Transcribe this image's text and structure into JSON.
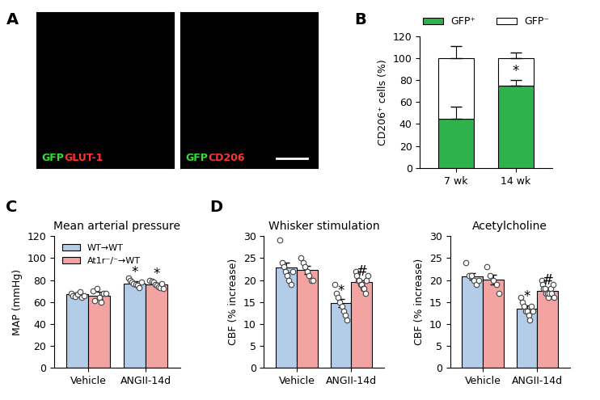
{
  "images": {
    "panel": "A",
    "frames": [
      {
        "labels": [
          {
            "text": "GFP",
            "color": "#33dd33"
          },
          {
            "text": "GLUT-1",
            "color": "#ff3333"
          }
        ]
      },
      {
        "labels": [
          {
            "text": "GFP",
            "color": "#33dd33"
          },
          {
            "text": "CD206",
            "color": "#ff3333"
          }
        ]
      }
    ]
  },
  "chart_data": [
    {
      "panel": "B",
      "type": "bar",
      "stacked": true,
      "legend": "above",
      "categories": [
        "7 wk",
        "14 wk"
      ],
      "y_label": "CD206⁺ cells (%)",
      "ylim": [
        0,
        120
      ],
      "yticks": [
        0,
        20,
        40,
        60,
        80,
        100,
        120
      ],
      "series": [
        {
          "name": "GFP⁺",
          "color": "#2eb24b",
          "values": [
            45,
            75
          ],
          "error": [
            11,
            5
          ]
        },
        {
          "name": "GFP⁻",
          "color": "#ffffff",
          "values": [
            55,
            25
          ],
          "error": [
            11,
            5
          ]
        }
      ],
      "annotations": [
        {
          "category": "14 wk",
          "series": "GFP⁺",
          "text": "*"
        }
      ]
    },
    {
      "panel": "C",
      "type": "bar",
      "title": "Mean arterial pressure",
      "legend": "upper left",
      "categories": [
        "Vehicle",
        "ANGII-14d"
      ],
      "y_label": "MAP (mmHg)",
      "ylim": [
        0,
        120
      ],
      "yticks": [
        0,
        20,
        40,
        60,
        80,
        100,
        120
      ],
      "series": [
        {
          "name": "WT→WT",
          "color": "#b3cde8",
          "values": [
            67,
            77
          ],
          "error": [
            1.5,
            2
          ],
          "points": [
            [
              68,
              66,
              65,
              67,
              69,
              64,
              66
            ],
            [
              82,
              80,
              78,
              77,
              76,
              75,
              73,
              78
            ]
          ]
        },
        {
          "name": "At1r⁻/⁻→WT",
          "color": "#f4a3a3",
          "values": [
            66,
            76
          ],
          "error": [
            3,
            1.5
          ],
          "points": [
            [
              70,
              61,
              72,
              64,
              60,
              68,
              68
            ],
            [
              80,
              79,
              78,
              76,
              75,
              74,
              73,
              77,
              72
            ]
          ]
        }
      ],
      "annotations": [
        {
          "category": "ANGII-14d",
          "series": "WT→WT",
          "text": "*"
        },
        {
          "category": "ANGII-14d",
          "series": "At1r⁻/⁻→WT",
          "text": "*"
        }
      ]
    },
    {
      "panel": "D",
      "type": "bar",
      "title": "Whisker stimulation",
      "categories": [
        "Vehicle",
        "ANGII-14d"
      ],
      "y_label": "CBF (% increase)",
      "ylim": [
        0,
        30
      ],
      "yticks": [
        0,
        5,
        10,
        15,
        20,
        25,
        30
      ],
      "series": [
        {
          "color": "#b3cde8",
          "values": [
            22.8,
            14.7
          ],
          "error": [
            1.1,
            0.9
          ],
          "points": [
            [
              29,
              24,
              23,
              22,
              21,
              20,
              19,
              22
            ],
            [
              19,
              17,
              16,
              15,
              14,
              13,
              12,
              11
            ]
          ]
        },
        {
          "color": "#f4a3a3",
          "values": [
            22.3,
            19.5
          ],
          "error": [
            0.9,
            0.5
          ],
          "points": [
            [
              25,
              24,
              23,
              22,
              21,
              20,
              20
            ],
            [
              22,
              21,
              20,
              20,
              19,
              19,
              18,
              18,
              17,
              20,
              21
            ]
          ]
        }
      ],
      "annotations": [
        {
          "category": "ANGII-14d",
          "series": 0,
          "text": "*"
        },
        {
          "category": "ANGII-14d",
          "series": 1,
          "text": "#"
        }
      ]
    },
    {
      "type": "bar",
      "title": "Acetylcholine",
      "categories": [
        "Vehicle",
        "ANGII-14d"
      ],
      "y_label": "CBF (% increase)",
      "ylim": [
        0,
        30
      ],
      "yticks": [
        0,
        5,
        10,
        15,
        20,
        25,
        30
      ],
      "series": [
        {
          "color": "#b3cde8",
          "values": [
            20.8,
            13.5
          ],
          "error": [
            0.7,
            0.8
          ],
          "points": [
            [
              24,
              21,
              21,
              20,
              19,
              20
            ],
            [
              16,
              15,
              14,
              13,
              13,
              12,
              11,
              14,
              13
            ]
          ]
        },
        {
          "color": "#f4a3a3",
          "values": [
            20.1,
            17.5
          ],
          "error": [
            1.1,
            0.4
          ],
          "points": [
            [
              23,
              21,
              20,
              19,
              17
            ],
            [
              20,
              19,
              18,
              18,
              17,
              17,
              16,
              17,
              18,
              17,
              19,
              16
            ]
          ]
        }
      ],
      "annotations": [
        {
          "category": "ANGII-14d",
          "series": 0,
          "text": "*"
        },
        {
          "category": "ANGII-14d",
          "series": 1,
          "text": "#"
        }
      ]
    }
  ]
}
